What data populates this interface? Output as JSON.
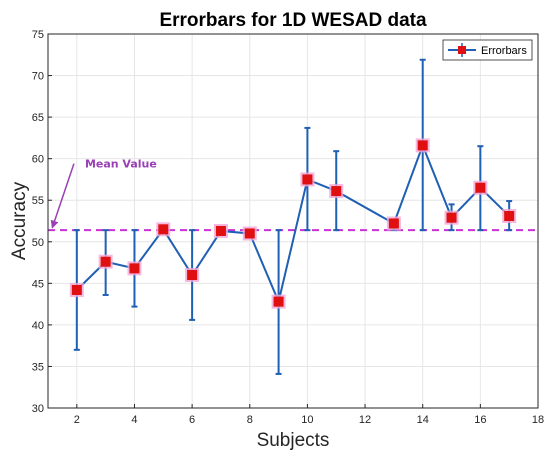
{
  "chart_data": {
    "type": "line",
    "title": "Errorbars for 1D WESAD data",
    "xlabel": "Subjects",
    "ylabel": "Accuracy",
    "xlim": [
      1,
      18
    ],
    "ylim": [
      30,
      75
    ],
    "xticks": [
      2,
      4,
      6,
      8,
      10,
      12,
      14,
      16,
      18
    ],
    "yticks": [
      30,
      35,
      40,
      45,
      50,
      55,
      60,
      65,
      70,
      75
    ],
    "grid": true,
    "legend_position": "top-right",
    "series": [
      {
        "name": "Errorbars",
        "x": [
          2,
          3,
          4,
          5,
          6,
          7,
          8,
          9,
          10,
          11,
          13,
          14,
          15,
          16,
          17
        ],
        "y": [
          44.2,
          47.6,
          46.8,
          51.5,
          46.0,
          51.3,
          51.0,
          42.8,
          57.5,
          56.1,
          52.2,
          61.6,
          52.9,
          56.5,
          53.1
        ],
        "lower": [
          37.0,
          43.6,
          42.2,
          51.4,
          40.6,
          51.2,
          50.8,
          34.1,
          51.4,
          51.4,
          51.4,
          51.4,
          51.4,
          51.4,
          51.4
        ],
        "upper": [
          51.4,
          51.4,
          51.4,
          51.6,
          51.4,
          51.4,
          51.4,
          51.4,
          63.7,
          60.9,
          52.4,
          71.9,
          54.5,
          61.5,
          54.9
        ]
      }
    ],
    "mean_line": {
      "y": 51.4,
      "color": "#c930d8"
    },
    "annotation": {
      "text": "Mean Value",
      "color": "#9b3fb6",
      "start": [
        1.9,
        59.4
      ],
      "end": [
        1.15,
        51.7
      ]
    },
    "colors": {
      "line": "#1f5fb4",
      "marker": "#e01010",
      "marker_glow": "#f3a6d6",
      "grid": "#e6e6e6",
      "axis": "#262626"
    }
  }
}
